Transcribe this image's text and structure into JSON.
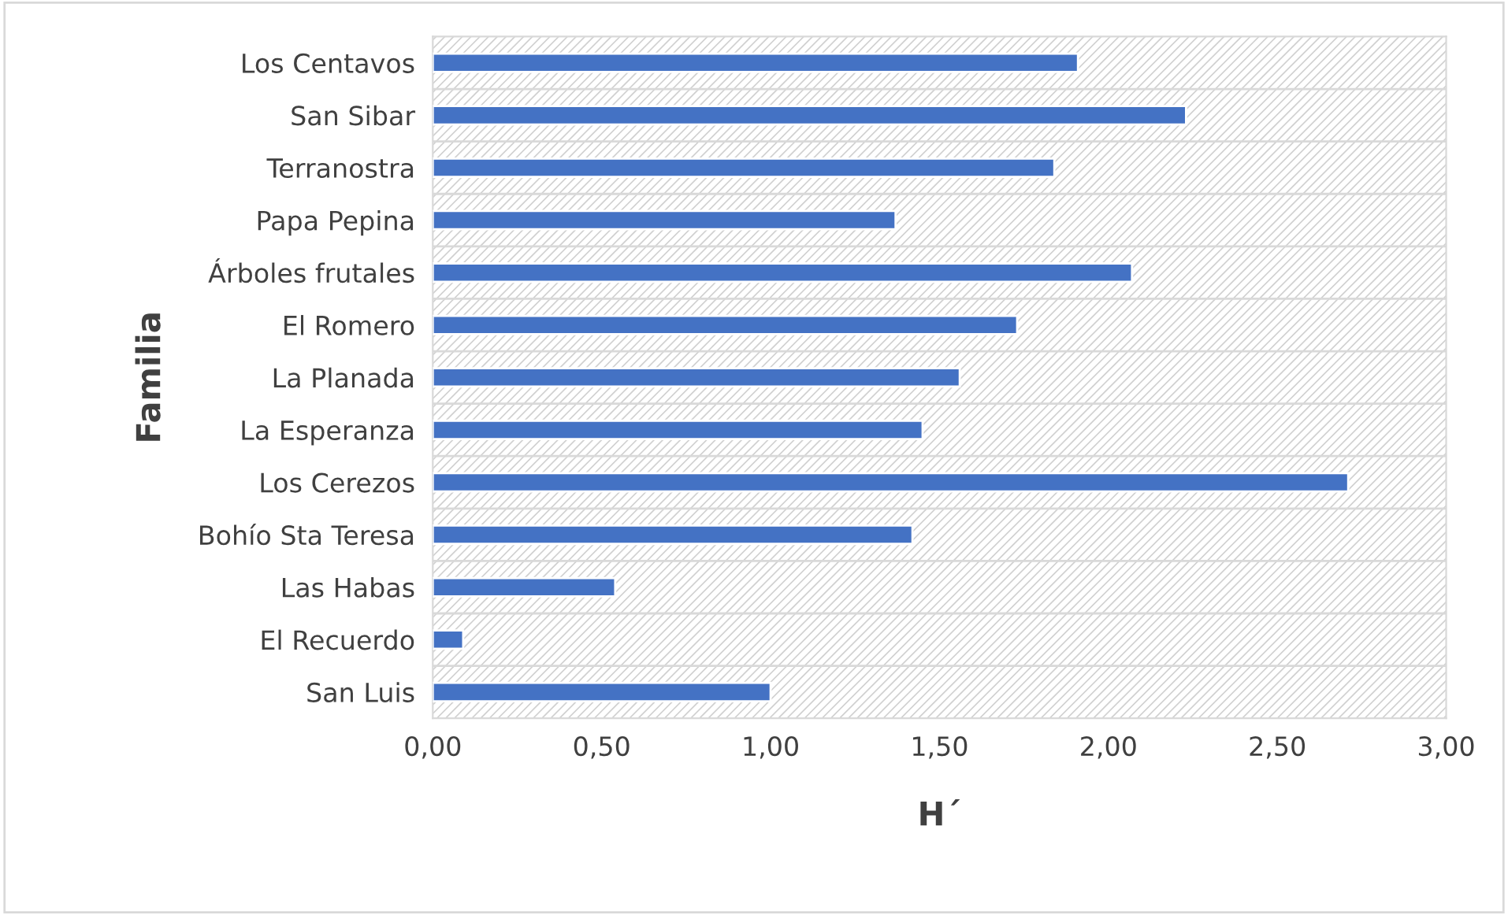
{
  "chart_data": {
    "type": "bar",
    "orientation": "horizontal",
    "xlabel": "H´",
    "ylabel": "Familia",
    "categories": [
      "Los Centavos",
      "San Sibar",
      "Terranostra",
      "Papa Pepina",
      "Árboles frutales",
      "El Romero",
      "La Planada",
      "La Esperanza",
      "Los Cerezos",
      "Bohío Sta Teresa",
      "Las Habas",
      "El Recuerdo",
      "San Luis"
    ],
    "values": [
      1.91,
      2.23,
      1.84,
      1.37,
      2.07,
      1.73,
      1.56,
      1.45,
      2.71,
      1.42,
      0.54,
      0.09,
      1.0
    ],
    "color": "#4472c4",
    "xlim": [
      0,
      3
    ],
    "xticks": [
      {
        "value": 0,
        "label": "0,00"
      },
      {
        "value": 0.5,
        "label": "0,50"
      },
      {
        "value": 1,
        "label": "1,00"
      },
      {
        "value": 1.5,
        "label": "1,50"
      },
      {
        "value": 2,
        "label": "2,00"
      },
      {
        "value": 2.5,
        "label": "2,50"
      },
      {
        "value": 3,
        "label": "3,00"
      }
    ],
    "grid": false,
    "legend": false
  }
}
